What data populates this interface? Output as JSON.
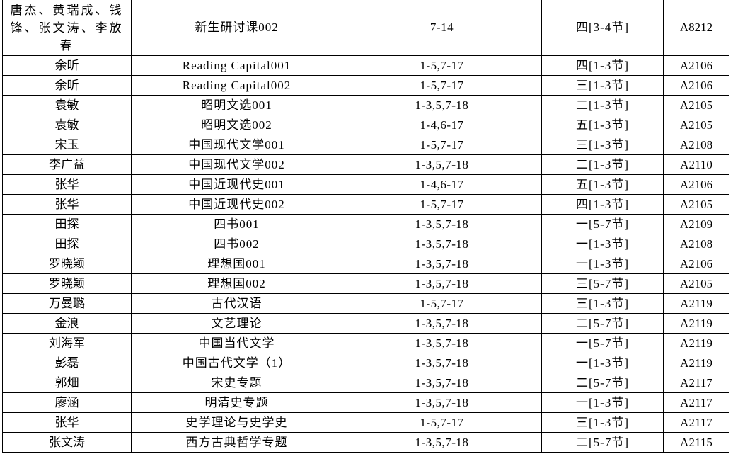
{
  "rows": [
    {
      "teacher": "唐杰、黄瑞成、钱锋、张文涛、李放春",
      "course": "新生研讨课002",
      "weeks": "7-14",
      "time": "四[3-4节]",
      "room": "A8212"
    },
    {
      "teacher": "余昕",
      "course": "Reading Capital001",
      "weeks": "1-5,7-17",
      "time": "四[1-3节]",
      "room": "A2106"
    },
    {
      "teacher": "余昕",
      "course": "Reading Capital002",
      "weeks": "1-5,7-17",
      "time": "三[1-3节]",
      "room": "A2106"
    },
    {
      "teacher": "袁敏",
      "course": "昭明文选001",
      "weeks": "1-3,5,7-18",
      "time": "二[1-3节]",
      "room": "A2105"
    },
    {
      "teacher": "袁敏",
      "course": "昭明文选002",
      "weeks": "1-4,6-17",
      "time": "五[1-3节]",
      "room": "A2105"
    },
    {
      "teacher": "宋玉",
      "course": "中国现代文学001",
      "weeks": "1-5,7-17",
      "time": "三[1-3节]",
      "room": "A2108"
    },
    {
      "teacher": "李广益",
      "course": "中国现代文学002",
      "weeks": "1-3,5,7-18",
      "time": "二[1-3节]",
      "room": "A2110"
    },
    {
      "teacher": "张华",
      "course": "中国近现代史001",
      "weeks": "1-4,6-17",
      "time": "五[1-3节]",
      "room": "A2106"
    },
    {
      "teacher": "张华",
      "course": "中国近现代史002",
      "weeks": "1-5,7-17",
      "time": "四[1-3节]",
      "room": "A2105"
    },
    {
      "teacher": "田探",
      "course": "四书001",
      "weeks": "1-3,5,7-18",
      "time": "一[5-7节]",
      "room": "A2109"
    },
    {
      "teacher": "田探",
      "course": "四书002",
      "weeks": "1-3,5,7-18",
      "time": "一[1-3节]",
      "room": "A2108"
    },
    {
      "teacher": "罗晓颖",
      "course": "理想国001",
      "weeks": "1-3,5,7-18",
      "time": "一[1-3节]",
      "room": "A2106"
    },
    {
      "teacher": "罗晓颖",
      "course": "理想国002",
      "weeks": "1-3,5,7-18",
      "time": "三[5-7节]",
      "room": "A2105"
    },
    {
      "teacher": "万曼璐",
      "course": "古代汉语",
      "weeks": "1-5,7-17",
      "time": "三[1-3节]",
      "room": "A2119"
    },
    {
      "teacher": "金浪",
      "course": "文艺理论",
      "weeks": "1-3,5,7-18",
      "time": "二[5-7节]",
      "room": "A2119"
    },
    {
      "teacher": "刘海军",
      "course": "中国当代文学",
      "weeks": "1-3,5,7-18",
      "time": "一[5-7节]",
      "room": "A2119"
    },
    {
      "teacher": "彭磊",
      "course": "中国古代文学（1）",
      "weeks": "1-3,5,7-18",
      "time": "一[1-3节]",
      "room": "A2119"
    },
    {
      "teacher": "郭畑",
      "course": "宋史专题",
      "weeks": "1-3,5,7-18",
      "time": "二[5-7节]",
      "room": "A2117"
    },
    {
      "teacher": "廖涵",
      "course": "明清史专题",
      "weeks": "1-3,5,7-18",
      "time": "一[1-3节]",
      "room": "A2117"
    },
    {
      "teacher": "张华",
      "course": "史学理论与史学史",
      "weeks": "1-5,7-17",
      "time": "三[1-3节]",
      "room": "A2117"
    },
    {
      "teacher": "张文涛",
      "course": "西方古典哲学专题",
      "weeks": "1-3,5,7-18",
      "time": "二[5-7节]",
      "room": "A2115"
    }
  ]
}
